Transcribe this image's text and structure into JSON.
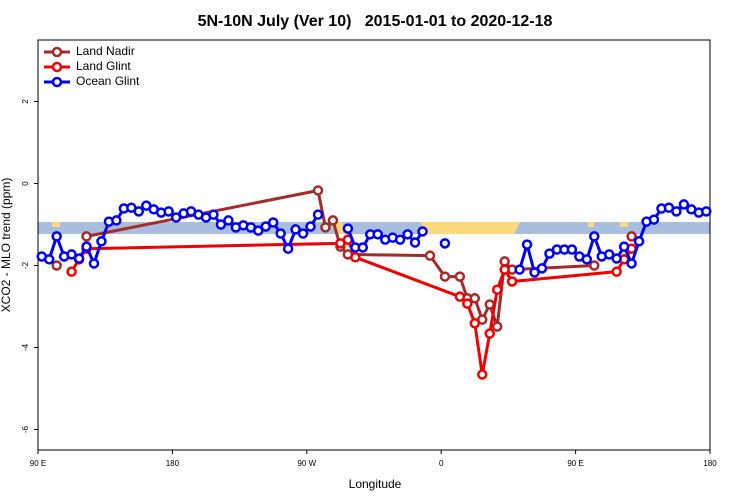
{
  "chart_data": {
    "type": "line",
    "title": "5N-10N July (Ver 10)   2015-01-01 to 2020-12-18",
    "x_label": "Longitude",
    "y_label": "XCO2 - MLO trend (ppm)",
    "xlim": [
      90,
      540
    ],
    "ylim": [
      -6.5,
      3.5
    ],
    "xticks": [
      {
        "value": 90,
        "label": "90 E"
      },
      180,
      {
        "value": 270,
        "label": "90 W"
      },
      {
        "value": 360,
        "label": "0"
      },
      {
        "value": 450,
        "label": "90 E"
      },
      {
        "value": 540,
        "label": "180"
      }
    ],
    "yticks": [
      -6,
      -4,
      -2,
      0,
      2
    ],
    "legend": "top-left",
    "series": [
      {
        "name": "Land Nadir",
        "color": "#a52a2a",
        "x": [
          102.5,
          117.5,
          122.5,
          277.5,
          282.5,
          287.5,
          292.5,
          297.5,
          352.5,
          362.5,
          372.5,
          377.5,
          382.5,
          387.5,
          392.5,
          397.5,
          402.5,
          407.5,
          462.5,
          482.5,
          487.5
        ],
        "values": [
          -2.0,
          null,
          -1.29,
          -0.17,
          -1.07,
          -0.9,
          -1.54,
          -1.73,
          -1.76,
          -2.27,
          -2.27,
          -2.8,
          -2.8,
          -3.32,
          -2.95,
          -3.49,
          -1.9,
          -2.1,
          -2.0,
          null,
          -1.29
        ]
      },
      {
        "name": "Land Glint",
        "color": "#ee0000",
        "x": [
          112.5,
          117.5,
          122.5,
          292.5,
          297.5,
          302.5,
          372.5,
          377.5,
          382.5,
          387.5,
          392.5,
          397.5,
          402.5,
          407.5,
          477.5,
          482.5,
          487.5
        ],
        "values": [
          -2.15,
          -1.85,
          -1.59,
          -1.46,
          -1.37,
          -1.8,
          -2.76,
          -2.93,
          -3.41,
          -4.66,
          -3.66,
          -2.59,
          -2.1,
          -2.39,
          -2.15,
          -1.85,
          -1.59
        ]
      },
      {
        "name": "Ocean Glint",
        "color": "#0000ee",
        "x": [
          92.5,
          97.5,
          102.5,
          107.5,
          112.5,
          117.5,
          122.5,
          127.5,
          132.5,
          137.5,
          142.5,
          147.5,
          152.5,
          157.5,
          162.5,
          167.5,
          172.5,
          177.5,
          182.5,
          187.5,
          192.5,
          197.5,
          202.5,
          207.5,
          212.5,
          217.5,
          222.5,
          227.5,
          232.5,
          237.5,
          242.5,
          247.5,
          252.5,
          257.5,
          262.5,
          267.5,
          272.5,
          277.5,
          287.5,
          297.5,
          302.5,
          307.5,
          312.5,
          317.5,
          322.5,
          327.5,
          332.5,
          337.5,
          342.5,
          347.5,
          352.5,
          362.5,
          377.5,
          412.5,
          417.5,
          422.5,
          427.5,
          432.5,
          437.5,
          442.5,
          447.5,
          452.5,
          457.5,
          462.5,
          467.5,
          472.5,
          477.5,
          482.5,
          487.5,
          492.5,
          497.5,
          502.5,
          507.5,
          512.5,
          517.5,
          522.5,
          527.5,
          532.5,
          537.5
        ],
        "values": [
          -1.78,
          -1.85,
          -1.29,
          -1.78,
          -1.73,
          -1.83,
          -1.54,
          -1.95,
          -1.41,
          -0.93,
          -0.9,
          -0.61,
          -0.59,
          -0.68,
          -0.54,
          -0.63,
          -0.71,
          -0.68,
          -0.83,
          -0.73,
          -0.68,
          -0.76,
          -0.83,
          -0.76,
          -1.0,
          -0.9,
          -1.07,
          -1.02,
          -1.07,
          -1.15,
          -1.05,
          -0.95,
          -1.22,
          -1.59,
          -1.12,
          -1.22,
          -1.05,
          -0.76,
          null,
          -1.1,
          -1.56,
          -1.56,
          -1.24,
          -1.24,
          -1.37,
          -1.32,
          -1.37,
          -1.24,
          -1.44,
          -1.17,
          null,
          -1.46,
          null,
          -2.1,
          -1.49,
          -2.17,
          -2.07,
          -1.71,
          -1.61,
          -1.61,
          -1.61,
          -1.78,
          -1.85,
          -1.29,
          -1.78,
          -1.73,
          -1.83,
          -1.54,
          -1.95,
          -1.41,
          -0.93,
          -0.88,
          -0.61,
          -0.59,
          -0.68,
          -0.51,
          -0.63,
          -0.71,
          -0.68
        ]
      }
    ]
  }
}
